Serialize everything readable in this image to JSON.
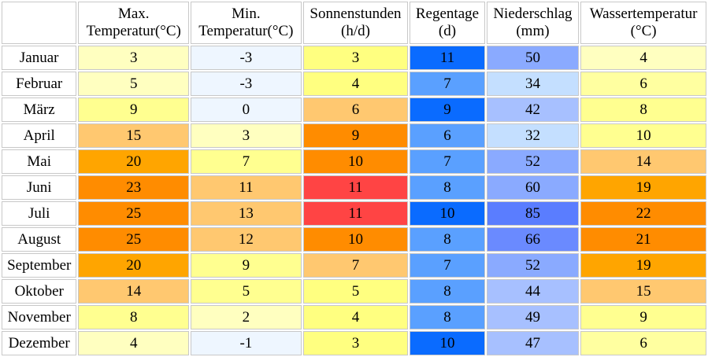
{
  "headers": [
    {
      "line1": "",
      "line2": ""
    },
    {
      "line1": "Max.",
      "line2": "Temperatur(°C)"
    },
    {
      "line1": "Min.",
      "line2": "Temperatur(°C)"
    },
    {
      "line1": "Sonnenstunden",
      "line2": "(h/d)"
    },
    {
      "line1": "Regentage",
      "line2": "(d)"
    },
    {
      "line1": "Niederschlag",
      "line2": "(mm)"
    },
    {
      "line1": "Wassertemperatur",
      "line2": "(°C)"
    }
  ],
  "rows": [
    {
      "month": "Januar",
      "values": [
        "3",
        "-3",
        "3",
        "11",
        "50",
        "4"
      ],
      "colors": [
        "#ffffc0",
        "#eef6ff",
        "#ffff80",
        "#0a6bff",
        "#8aaaff",
        "#ffffc0"
      ]
    },
    {
      "month": "Februar",
      "values": [
        "5",
        "-3",
        "4",
        "7",
        "34",
        "6"
      ],
      "colors": [
        "#ffffc0",
        "#eef6ff",
        "#ffff80",
        "#5aa0ff",
        "#c4dfff",
        "#ffffa0"
      ]
    },
    {
      "month": "März",
      "values": [
        "9",
        "0",
        "6",
        "9",
        "42",
        "8"
      ],
      "colors": [
        "#ffff90",
        "#eef6ff",
        "#ffc870",
        "#0a6bff",
        "#a7c0ff",
        "#ffff90"
      ]
    },
    {
      "month": "April",
      "values": [
        "15",
        "3",
        "9",
        "6",
        "32",
        "10"
      ],
      "colors": [
        "#ffc870",
        "#ffffc0",
        "#ff8c00",
        "#5aa0ff",
        "#c4dfff",
        "#ffff90"
      ]
    },
    {
      "month": "Mai",
      "values": [
        "20",
        "7",
        "10",
        "7",
        "52",
        "14"
      ],
      "colors": [
        "#ffa500",
        "#ffff90",
        "#ff8c00",
        "#5aa0ff",
        "#8aaaff",
        "#ffc870"
      ]
    },
    {
      "month": "Juni",
      "values": [
        "23",
        "11",
        "11",
        "8",
        "60",
        "19"
      ],
      "colors": [
        "#ff8c00",
        "#ffc870",
        "#ff4444",
        "#5aa0ff",
        "#8aaaff",
        "#ffa500"
      ]
    },
    {
      "month": "Juli",
      "values": [
        "25",
        "13",
        "11",
        "10",
        "85",
        "22"
      ],
      "colors": [
        "#ff8c00",
        "#ffc870",
        "#ff4444",
        "#0a6bff",
        "#5a7dff",
        "#ff8c00"
      ]
    },
    {
      "month": "August",
      "values": [
        "25",
        "12",
        "10",
        "8",
        "66",
        "21"
      ],
      "colors": [
        "#ff8c00",
        "#ffc870",
        "#ff8c00",
        "#5aa0ff",
        "#6a8aff",
        "#ff8c00"
      ]
    },
    {
      "month": "September",
      "values": [
        "20",
        "9",
        "7",
        "7",
        "52",
        "19"
      ],
      "colors": [
        "#ffa500",
        "#ffff90",
        "#ffc870",
        "#5aa0ff",
        "#8aaaff",
        "#ffa500"
      ]
    },
    {
      "month": "Oktober",
      "values": [
        "14",
        "5",
        "5",
        "8",
        "44",
        "15"
      ],
      "colors": [
        "#ffc870",
        "#ffff90",
        "#ffff80",
        "#5aa0ff",
        "#a7c0ff",
        "#ffc870"
      ]
    },
    {
      "month": "November",
      "values": [
        "8",
        "2",
        "4",
        "8",
        "49",
        "9"
      ],
      "colors": [
        "#ffff90",
        "#ffffc0",
        "#ffff80",
        "#5aa0ff",
        "#a7c0ff",
        "#ffff90"
      ]
    },
    {
      "month": "Dezember",
      "values": [
        "4",
        "-1",
        "3",
        "10",
        "47",
        "6"
      ],
      "colors": [
        "#ffffc0",
        "#eef6ff",
        "#ffff80",
        "#0a6bff",
        "#a7c0ff",
        "#ffffa0"
      ]
    }
  ]
}
